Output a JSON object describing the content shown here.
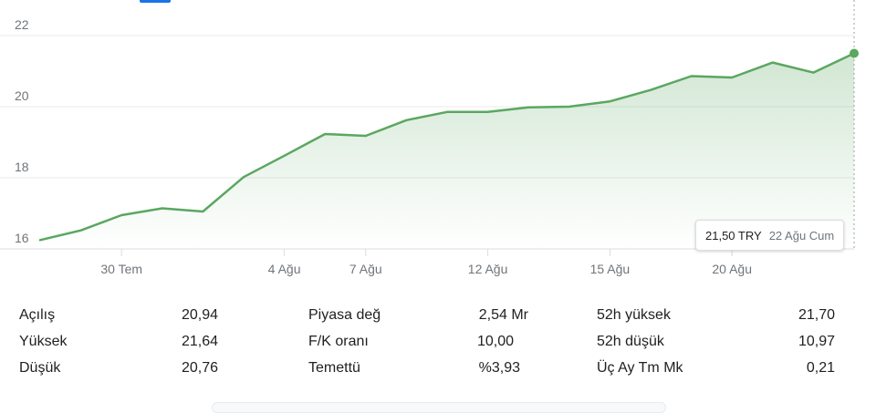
{
  "chart_data": {
    "type": "area",
    "x": [
      "",
      "",
      "30 Tem",
      "",
      "",
      "",
      "4 Ağu",
      "",
      "7 Ağu",
      "",
      "",
      "12 Ağu",
      "",
      "",
      "15 Ağu",
      "",
      "",
      "20 Ağu",
      "",
      "",
      "22 Ağu"
    ],
    "series": [
      {
        "values": [
          16.25,
          16.52,
          16.95,
          17.14,
          17.05,
          18.02,
          18.62,
          19.23,
          19.18,
          19.62,
          19.85,
          19.85,
          19.98,
          20.0,
          20.15,
          20.47,
          20.86,
          20.82,
          21.24,
          20.96,
          21.5
        ]
      }
    ],
    "ylim": [
      16,
      22
    ],
    "yticks": [
      "16",
      "18",
      "20",
      "22"
    ],
    "grid": true,
    "colors": {
      "line": "#5aa760",
      "fill": "#e3f2e4",
      "grid": "#ebebeb",
      "axis": "#dadce0"
    }
  },
  "tooltip": {
    "value": "21,50 TRY",
    "date": "22 Ağu Cum"
  },
  "stats": [
    [
      {
        "label": "Açılış",
        "value": "20,94"
      },
      {
        "label": "Piyasa değ",
        "value": "2,54 Mr"
      },
      {
        "label": "52h yüksek",
        "value": "21,70"
      }
    ],
    [
      {
        "label": "Yüksek",
        "value": "21,64"
      },
      {
        "label": "F/K oranı",
        "value": "10,00"
      },
      {
        "label": "52h düşük",
        "value": "10,97"
      }
    ],
    [
      {
        "label": "Düşük",
        "value": "20,76"
      },
      {
        "label": "Temettü",
        "value": "%3,93"
      },
      {
        "label": "Üç Ay Tm Mk",
        "value": "0,21"
      }
    ]
  ]
}
